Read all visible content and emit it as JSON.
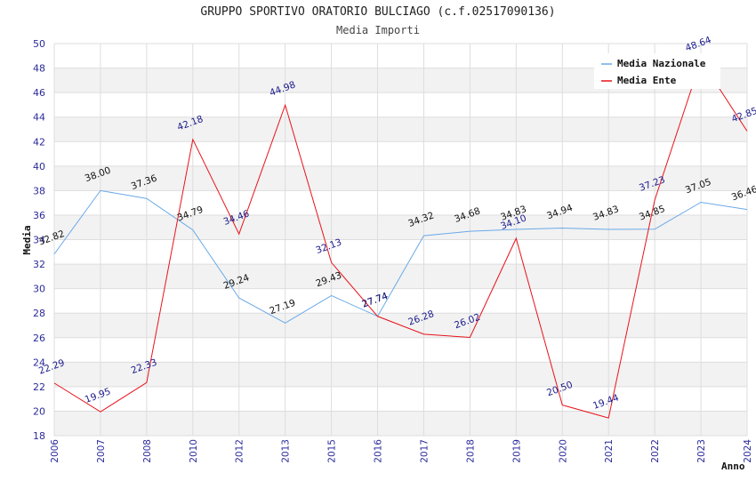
{
  "chart_data": {
    "type": "line",
    "title": "GRUPPO SPORTIVO ORATORIO BULCIAGO (c.f.02517090136)",
    "subtitle": "Media Importi",
    "xlabel": "Anno",
    "ylabel": "Media",
    "ylim": [
      18,
      50
    ],
    "yticks": [
      18,
      20,
      22,
      24,
      26,
      28,
      30,
      32,
      34,
      36,
      38,
      40,
      42,
      44,
      46,
      48,
      50
    ],
    "categories": [
      "2006",
      "2007",
      "2008",
      "2010",
      "2012",
      "2013",
      "2015",
      "2016",
      "2017",
      "2018",
      "2019",
      "2020",
      "2021",
      "2022",
      "2023",
      "2024"
    ],
    "series": [
      {
        "name": "Media Nazionale",
        "color": "#6aa9e8",
        "values": [
          32.82,
          38.0,
          37.36,
          34.79,
          29.24,
          27.19,
          29.43,
          27.74,
          34.32,
          34.68,
          34.83,
          34.94,
          34.83,
          34.85,
          37.05,
          36.46
        ],
        "labels": [
          "32.82",
          "38.00",
          "37.36",
          "34.79",
          "29.24",
          "27.19",
          "29.43",
          "27.74",
          "34.32",
          "34.68",
          "34.83",
          "34.94",
          "34.83",
          "34.85",
          "37.05",
          "36.46"
        ]
      },
      {
        "name": "Media Ente",
        "color": "#e8131b",
        "values": [
          22.29,
          19.95,
          22.33,
          42.18,
          34.46,
          44.98,
          32.13,
          27.74,
          26.28,
          26.02,
          34.1,
          20.5,
          19.44,
          37.23,
          48.64,
          42.85
        ],
        "labels": [
          "22.29",
          "19.95",
          "22.33",
          "42.18",
          "34.46",
          "44.98",
          "32.13",
          "27.74",
          "26.28",
          "26.02",
          "34.10",
          "20.50",
          "19.44",
          "37.23",
          "48.64",
          "42.85"
        ]
      }
    ],
    "grid": true,
    "legend": "top-right"
  },
  "colors": {
    "band": "#f2f2f2",
    "grid": "#dddddd",
    "tick_text": "#2a2a9a"
  }
}
